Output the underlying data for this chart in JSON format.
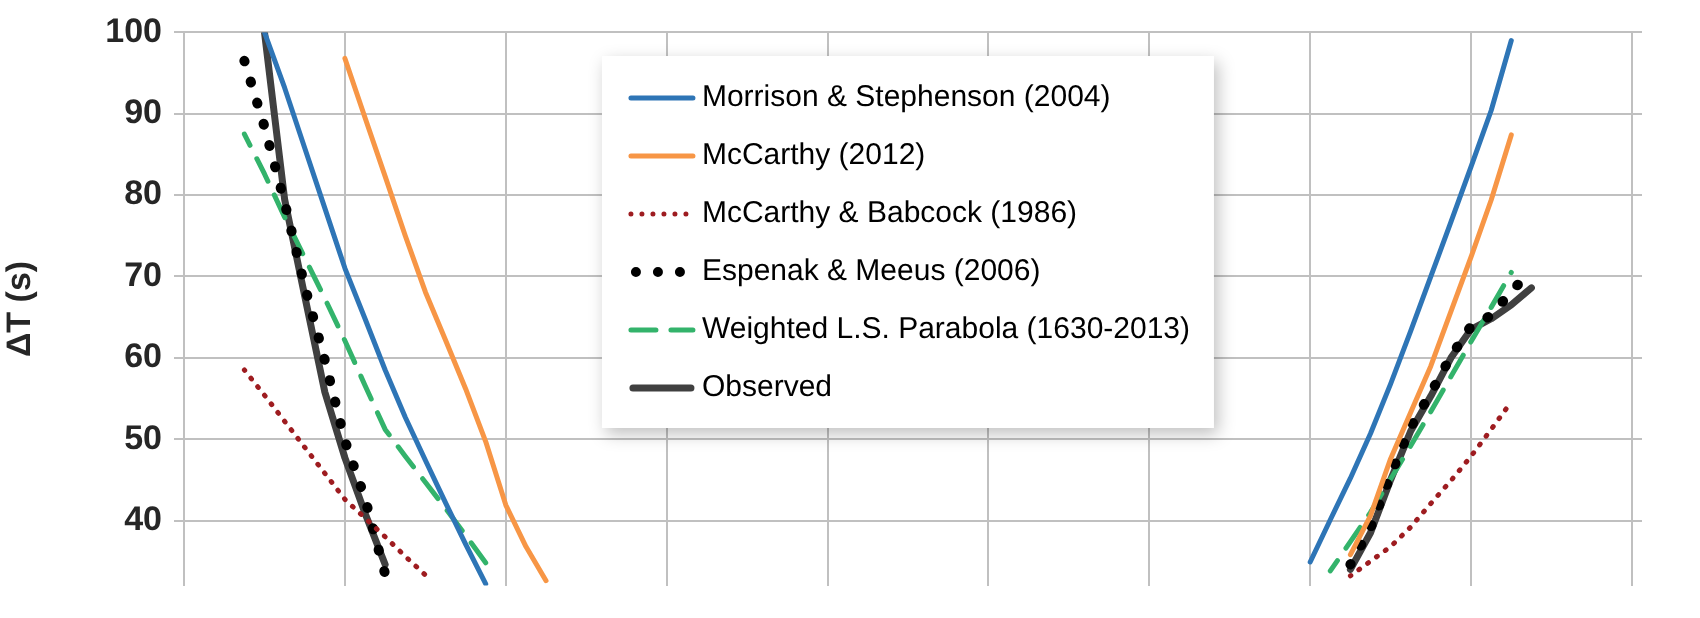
{
  "chart_data": {
    "type": "line",
    "ylabel": "ΔT (s)",
    "categories": [
      null,
      null,
      null,
      null,
      null,
      null,
      null,
      null,
      null,
      null,
      null,
      null,
      null,
      null,
      null,
      null,
      null,
      null,
      null,
      null,
      null,
      null,
      null,
      null,
      null,
      null,
      null,
      null,
      null,
      null,
      null,
      null,
      null,
      null,
      null,
      null,
      null,
      null,
      null,
      null,
      null,
      null,
      null,
      null,
      null,
      null,
      null,
      null,
      null,
      null,
      null,
      null,
      null,
      null,
      null,
      null,
      null,
      null,
      null,
      null,
      null,
      null,
      null,
      null,
      null,
      null,
      null,
      null,
      null,
      null,
      null,
      null,
      null
    ],
    "ylim": [
      32,
      100
    ],
    "yticks": [
      40,
      50,
      60,
      70,
      80,
      90,
      100
    ],
    "grid": true,
    "legend": "top",
    "tick_labels": "y",
    "series": [
      {
        "name": "Morrison & Stephenson (2004)",
        "color": "#2e75b6",
        "line_style": "solid",
        "values": [
          null,
          null,
          null,
          null,
          100,
          93.2,
          85.8,
          78.4,
          71.0,
          64.8,
          58.5,
          52.7,
          47.4,
          42.2,
          37.1,
          32.2,
          null,
          null,
          null,
          null,
          null,
          null,
          null,
          null,
          null,
          null,
          null,
          null,
          null,
          null,
          null,
          null,
          null,
          null,
          null,
          null,
          null,
          null,
          null,
          null,
          null,
          null,
          null,
          null,
          null,
          null,
          null,
          null,
          null,
          null,
          null,
          null,
          null,
          null,
          null,
          null,
          34.9,
          40.1,
          45.2,
          50.7,
          56.8,
          63.3,
          70.0,
          76.7,
          83.5,
          90.4,
          99.0,
          null,
          null,
          null,
          null,
          null,
          null
        ]
      },
      {
        "name": "McCarthy (2012)",
        "color": "#f79646",
        "line_style": "solid",
        "values": [
          null,
          null,
          null,
          null,
          null,
          null,
          null,
          null,
          96.8,
          89.5,
          82.3,
          75.0,
          68.1,
          62.2,
          56.2,
          49.7,
          41.9,
          36.8,
          32.6,
          null,
          null,
          null,
          null,
          null,
          null,
          null,
          null,
          null,
          null,
          null,
          null,
          null,
          null,
          null,
          null,
          null,
          null,
          null,
          null,
          null,
          null,
          null,
          null,
          null,
          null,
          null,
          null,
          null,
          null,
          null,
          null,
          null,
          null,
          null,
          null,
          null,
          null,
          null,
          35.8,
          40.6,
          47.6,
          53.3,
          59.0,
          65.7,
          72.4,
          79.4,
          87.4,
          null,
          null,
          null,
          null,
          null,
          null
        ]
      },
      {
        "name": "McCarthy & Babcock (1986)",
        "color": "#9e1c20",
        "line_style": "dotted",
        "values": [
          null,
          null,
          null,
          58.5,
          55.4,
          52.2,
          49.0,
          45.8,
          42.6,
          40.3,
          38.0,
          35.6,
          33.3,
          null,
          null,
          null,
          null,
          null,
          null,
          null,
          null,
          null,
          null,
          null,
          null,
          null,
          null,
          null,
          null,
          null,
          null,
          null,
          null,
          null,
          null,
          null,
          null,
          null,
          null,
          null,
          null,
          null,
          null,
          null,
          null,
          null,
          null,
          null,
          null,
          null,
          null,
          null,
          null,
          null,
          null,
          null,
          null,
          null,
          33.2,
          35.0,
          36.8,
          39.2,
          42.1,
          44.9,
          47.9,
          51.2,
          54.6,
          null,
          null,
          null,
          null,
          null,
          null
        ]
      },
      {
        "name": "Espenak & Meeus (2006)",
        "color": "#000000",
        "line_style": "dotted",
        "values": [
          null,
          null,
          null,
          96.5,
          88.4,
          79.1,
          68.8,
          59.7,
          49.8,
          42.7,
          33.4,
          null,
          null,
          null,
          null,
          null,
          null,
          null,
          null,
          null,
          null,
          null,
          null,
          null,
          null,
          null,
          null,
          null,
          null,
          null,
          null,
          null,
          null,
          null,
          null,
          null,
          null,
          null,
          null,
          null,
          null,
          null,
          null,
          null,
          null,
          null,
          null,
          null,
          null,
          null,
          null,
          null,
          null,
          null,
          null,
          null,
          null,
          null,
          34.6,
          39.1,
          45.6,
          51.5,
          55.7,
          60.2,
          63.9,
          65.2,
          68.2,
          70.6,
          null,
          null,
          null,
          null,
          null
        ]
      },
      {
        "name": "Weighted L.S. Parabola (1630-2013)",
        "color": "#33b36b",
        "line_style": "dashed",
        "values": [
          null,
          null,
          null,
          87.5,
          82.6,
          77.3,
          72.3,
          67.3,
          62.1,
          56.6,
          51.2,
          47.9,
          44.7,
          41.5,
          38.2,
          34.8,
          null,
          null,
          null,
          null,
          null,
          null,
          null,
          null,
          null,
          null,
          null,
          null,
          null,
          null,
          null,
          null,
          null,
          null,
          null,
          null,
          null,
          null,
          null,
          null,
          null,
          null,
          null,
          null,
          null,
          null,
          null,
          null,
          null,
          null,
          null,
          null,
          null,
          null,
          null,
          null,
          null,
          33.8,
          37.4,
          41.0,
          45.1,
          49.2,
          53.4,
          57.7,
          62.0,
          66.2,
          70.5,
          null,
          null,
          null,
          null,
          null,
          null
        ]
      },
      {
        "name": "Observed",
        "color": "#404040",
        "line_style": "solid",
        "values": [
          null,
          null,
          null,
          null,
          100,
          79.5,
          67.6,
          55.8,
          47.7,
          40.9,
          34.6,
          null,
          null,
          null,
          null,
          null,
          null,
          null,
          null,
          null,
          null,
          null,
          null,
          null,
          null,
          null,
          null,
          null,
          null,
          null,
          null,
          null,
          null,
          null,
          null,
          null,
          null,
          null,
          null,
          null,
          null,
          null,
          null,
          null,
          null,
          null,
          null,
          null,
          null,
          null,
          null,
          null,
          null,
          null,
          null,
          null,
          null,
          null,
          34.0,
          38.5,
          45.0,
          51.0,
          55.3,
          60.0,
          63.5,
          64.8,
          66.5,
          68.6,
          null,
          null,
          null,
          null,
          null
        ]
      }
    ]
  }
}
